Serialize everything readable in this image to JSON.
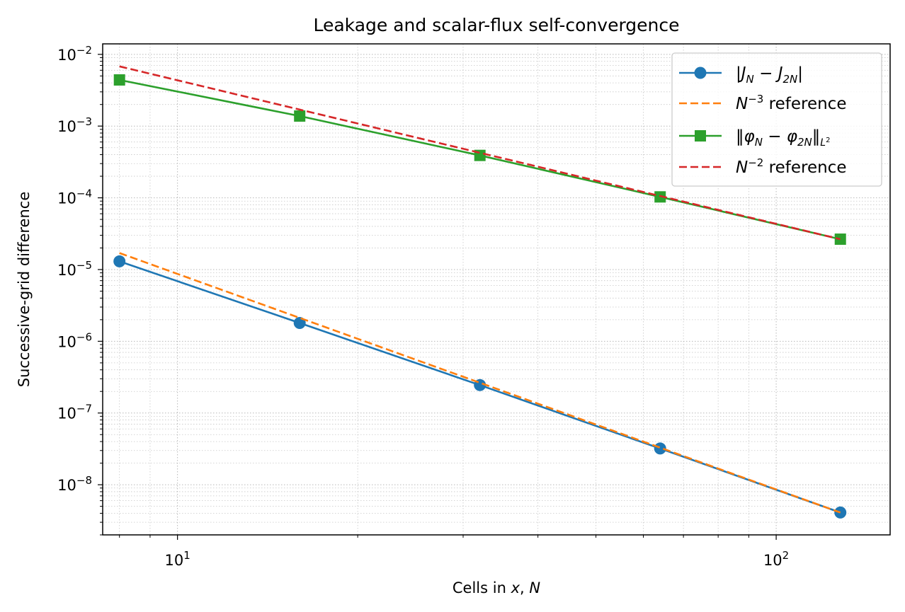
{
  "chart_data": {
    "type": "line",
    "title": "Leakage and scalar-flux self-convergence",
    "xlabel": "Cells in x, N",
    "ylabel": "Successive-grid difference",
    "xscale": "log",
    "yscale": "log",
    "xlim": [
      7.5,
      155
    ],
    "ylim": [
      2e-09,
      0.014
    ],
    "xticks": [
      {
        "value": 10,
        "base": "10",
        "exp": "1"
      },
      {
        "value": 100,
        "base": "10",
        "exp": "2"
      }
    ],
    "yticks": [
      {
        "value": 1e-08,
        "base": "10",
        "exp": "−8"
      },
      {
        "value": 1e-07,
        "base": "10",
        "exp": "−7"
      },
      {
        "value": 1e-06,
        "base": "10",
        "exp": "−6"
      },
      {
        "value": 1e-05,
        "base": "10",
        "exp": "−5"
      },
      {
        "value": 0.0001,
        "base": "10",
        "exp": "−4"
      },
      {
        "value": 0.001,
        "base": "10",
        "exp": "−3"
      },
      {
        "value": 0.01,
        "base": "10",
        "exp": "−2"
      }
    ],
    "grid": "major and minor, dotted",
    "legend_position": "top-right",
    "series": [
      {
        "name": "|J_N − J_2N|",
        "color": "#1f77b4",
        "style": "solid",
        "marker": "circle",
        "x": [
          8,
          16,
          32,
          64,
          128
        ],
        "y": [
          1.3e-05,
          1.8e-06,
          2.45e-07,
          3.2e-08,
          4.1e-09
        ]
      },
      {
        "name": "N^−3 reference",
        "color": "#ff7f0e",
        "style": "dashed",
        "marker": "none",
        "x": [
          8,
          128
        ],
        "y": [
          1.7e-05,
          4.1e-09
        ]
      },
      {
        "name": "‖φ_N − φ_2N‖_L²",
        "color": "#2ca02c",
        "style": "solid",
        "marker": "square",
        "x": [
          8,
          16,
          32,
          64,
          128
        ],
        "y": [
          0.0044,
          0.00138,
          0.00039,
          0.000103,
          2.65e-05
        ]
      },
      {
        "name": "N^−2 reference",
        "color": "#d62728",
        "style": "dashed",
        "marker": "none",
        "x": [
          8,
          128
        ],
        "y": [
          0.0068,
          2.65e-05
        ]
      }
    ]
  }
}
